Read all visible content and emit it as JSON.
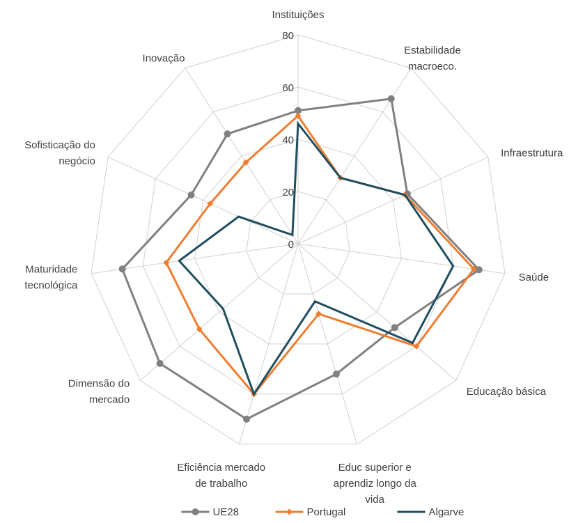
{
  "chart_data": {
    "type": "radar",
    "categories": [
      [
        "Instituições"
      ],
      [
        "Estabilidade",
        "macroeco."
      ],
      [
        "Infraestrutura"
      ],
      [
        "Saúde"
      ],
      [
        "Educação básica"
      ],
      [
        "Educ superior e",
        "aprendiz longo da",
        "vida"
      ],
      [
        "Eficiência mercado",
        "de trabalho"
      ],
      [
        "Dimensão do",
        "mercado"
      ],
      [
        "Maturidade",
        "tecnológica"
      ],
      [
        "Sofisticação do",
        "negócio"
      ],
      [
        "Inovação"
      ]
    ],
    "rlim": [
      0,
      80
    ],
    "ticks": [
      0,
      20,
      40,
      60,
      80
    ],
    "grid": true,
    "legend_position": "bottom",
    "series": [
      {
        "name": "UE28",
        "color": "#808080",
        "marker": "circle",
        "values": [
          51,
          66,
          46,
          70,
          49,
          52,
          70,
          70,
          68,
          45,
          50
        ]
      },
      {
        "name": "Portugal",
        "color": "#ED7D31",
        "marker": "diamond",
        "values": [
          49,
          30,
          45,
          68,
          60,
          28,
          60,
          50,
          51,
          37,
          37
        ]
      },
      {
        "name": "Algarve",
        "color": "#1F4E5F",
        "marker": "none",
        "values": [
          46,
          30,
          45,
          60,
          58,
          23,
          60,
          38,
          46,
          25,
          4
        ]
      }
    ]
  }
}
